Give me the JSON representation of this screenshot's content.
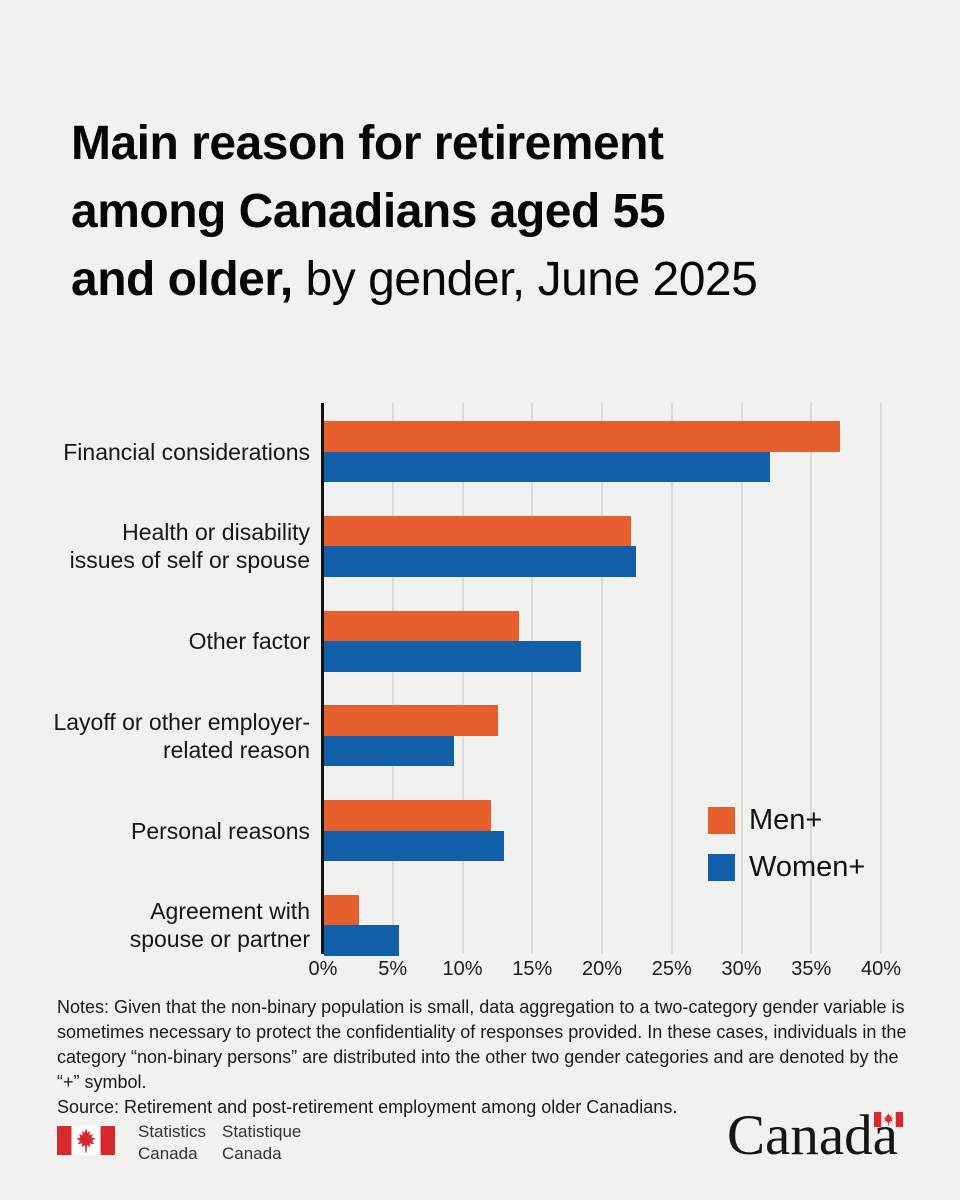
{
  "title": {
    "bold": "Main reason for retirement\namong Canadians aged 55\nand older,",
    "regular": " by gender, June 2025"
  },
  "chart_data": {
    "type": "bar",
    "orientation": "horizontal",
    "categories": [
      "Financial considerations",
      "Health or disability\nissues of self or spouse",
      "Other factor",
      "Layoff or other employer-\nrelated reason",
      "Personal reasons",
      "Agreement with\nspouse or partner"
    ],
    "series": [
      {
        "name": "Men+",
        "color": "#E65F2C",
        "values": [
          37.0,
          22.0,
          14.0,
          12.5,
          12.0,
          2.5
        ]
      },
      {
        "name": "Women+",
        "color": "#1160A9",
        "values": [
          32.0,
          22.4,
          18.4,
          9.3,
          12.9,
          5.4
        ]
      }
    ],
    "x_ticks": [
      "0%",
      "5%",
      "10%",
      "15%",
      "20%",
      "25%",
      "30%",
      "35%",
      "40%"
    ],
    "xlim": [
      0,
      40
    ],
    "grid": true,
    "legend_position": "middle-right",
    "unit": "percent"
  },
  "notes": "Notes: Given that the non-binary population is small, data aggregation to a two-category gender variable is sometimes necessary to protect the confidentiality of responses provided. In these cases, individuals in the category “non-binary persons” are distributed into the other two gender categories and are denoted by the “+” symbol.\nSource: Retirement and post-retirement employment among older Canadians.",
  "footer": {
    "statcan_en": "Statistics\nCanada",
    "statcan_fr": "Statistique\nCanada",
    "wordmark": "Canada"
  },
  "colors": {
    "background": "#f1f1ef",
    "men": "#E65F2C",
    "women": "#1160A9",
    "axis": "#131313",
    "gridline": "#dadad8",
    "flag_red": "#D8292F"
  }
}
